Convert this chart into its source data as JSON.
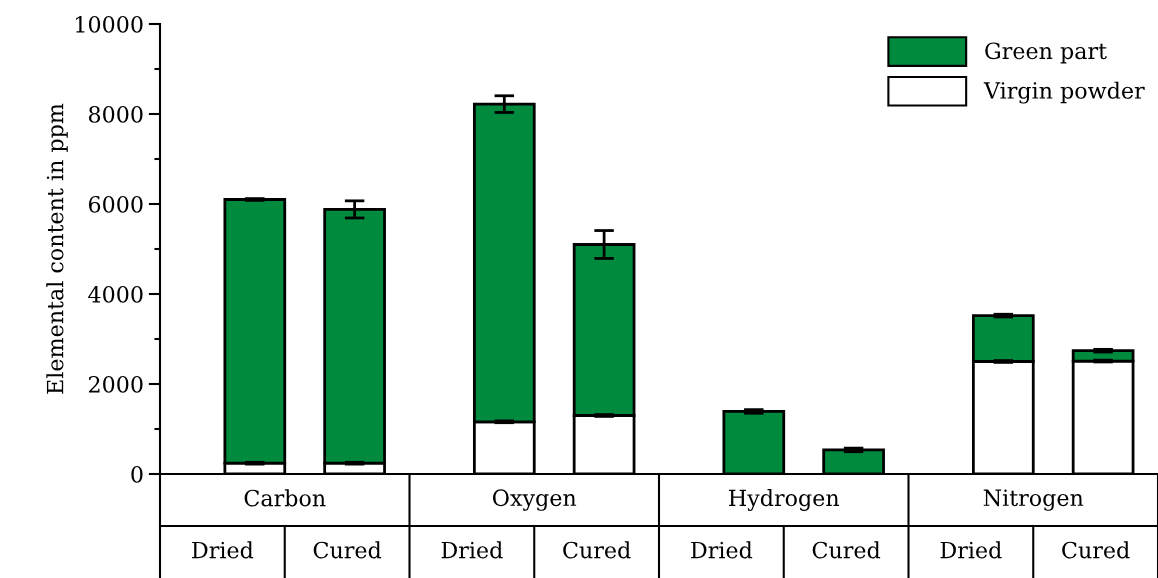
{
  "chart_data": {
    "type": "bar",
    "stacked": true,
    "ylabel": "Elemental content in ppm",
    "categories": [
      "Dried",
      "Cured",
      "Dried",
      "Cured",
      "Dried",
      "Cured",
      "Dried",
      "Cured"
    ],
    "annotations": [
      "Carbon",
      "Oxygen",
      "Hydrogen",
      "Nitrogen"
    ],
    "series": [
      {
        "name": "Virgin powder",
        "color": "#ffffff",
        "values": [
          240,
          240,
          1160,
          1300,
          0,
          0,
          2500,
          2510
        ],
        "errors": [
          20,
          20,
          20,
          20,
          null,
          null,
          20,
          20
        ]
      },
      {
        "name": "Green part",
        "color": "#008a3e",
        "values": [
          5860,
          5640,
          7060,
          3800,
          1390,
          535,
          1020,
          230
        ],
        "errors": [
          20,
          190,
          185,
          310,
          40,
          40,
          30,
          30
        ]
      }
    ],
    "ylim": [
      0,
      10000
    ],
    "yticks": [
      0,
      2000,
      4000,
      6000,
      8000,
      10000
    ],
    "grid": false,
    "legend": "top right"
  }
}
